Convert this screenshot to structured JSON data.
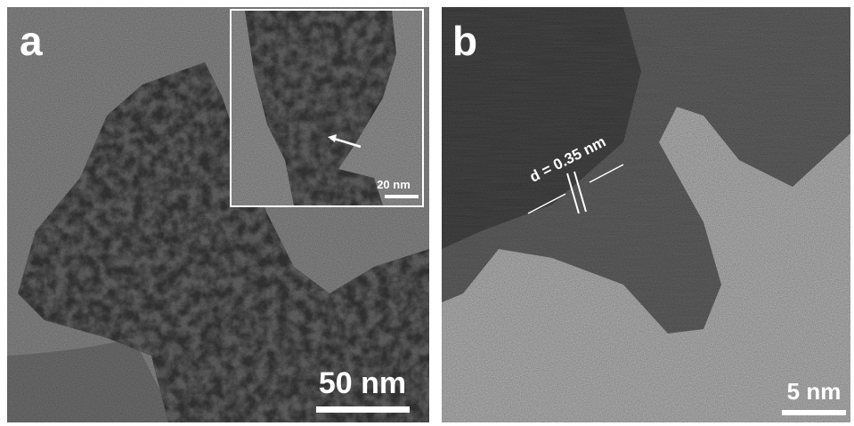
{
  "panels": [
    {
      "label": "a",
      "scale_bar": "50 nm",
      "inset": {
        "scale_bar": "20 nm"
      }
    },
    {
      "label": "b",
      "annotation": "d = 0.35 nm",
      "scale_bar": "5 nm"
    }
  ]
}
